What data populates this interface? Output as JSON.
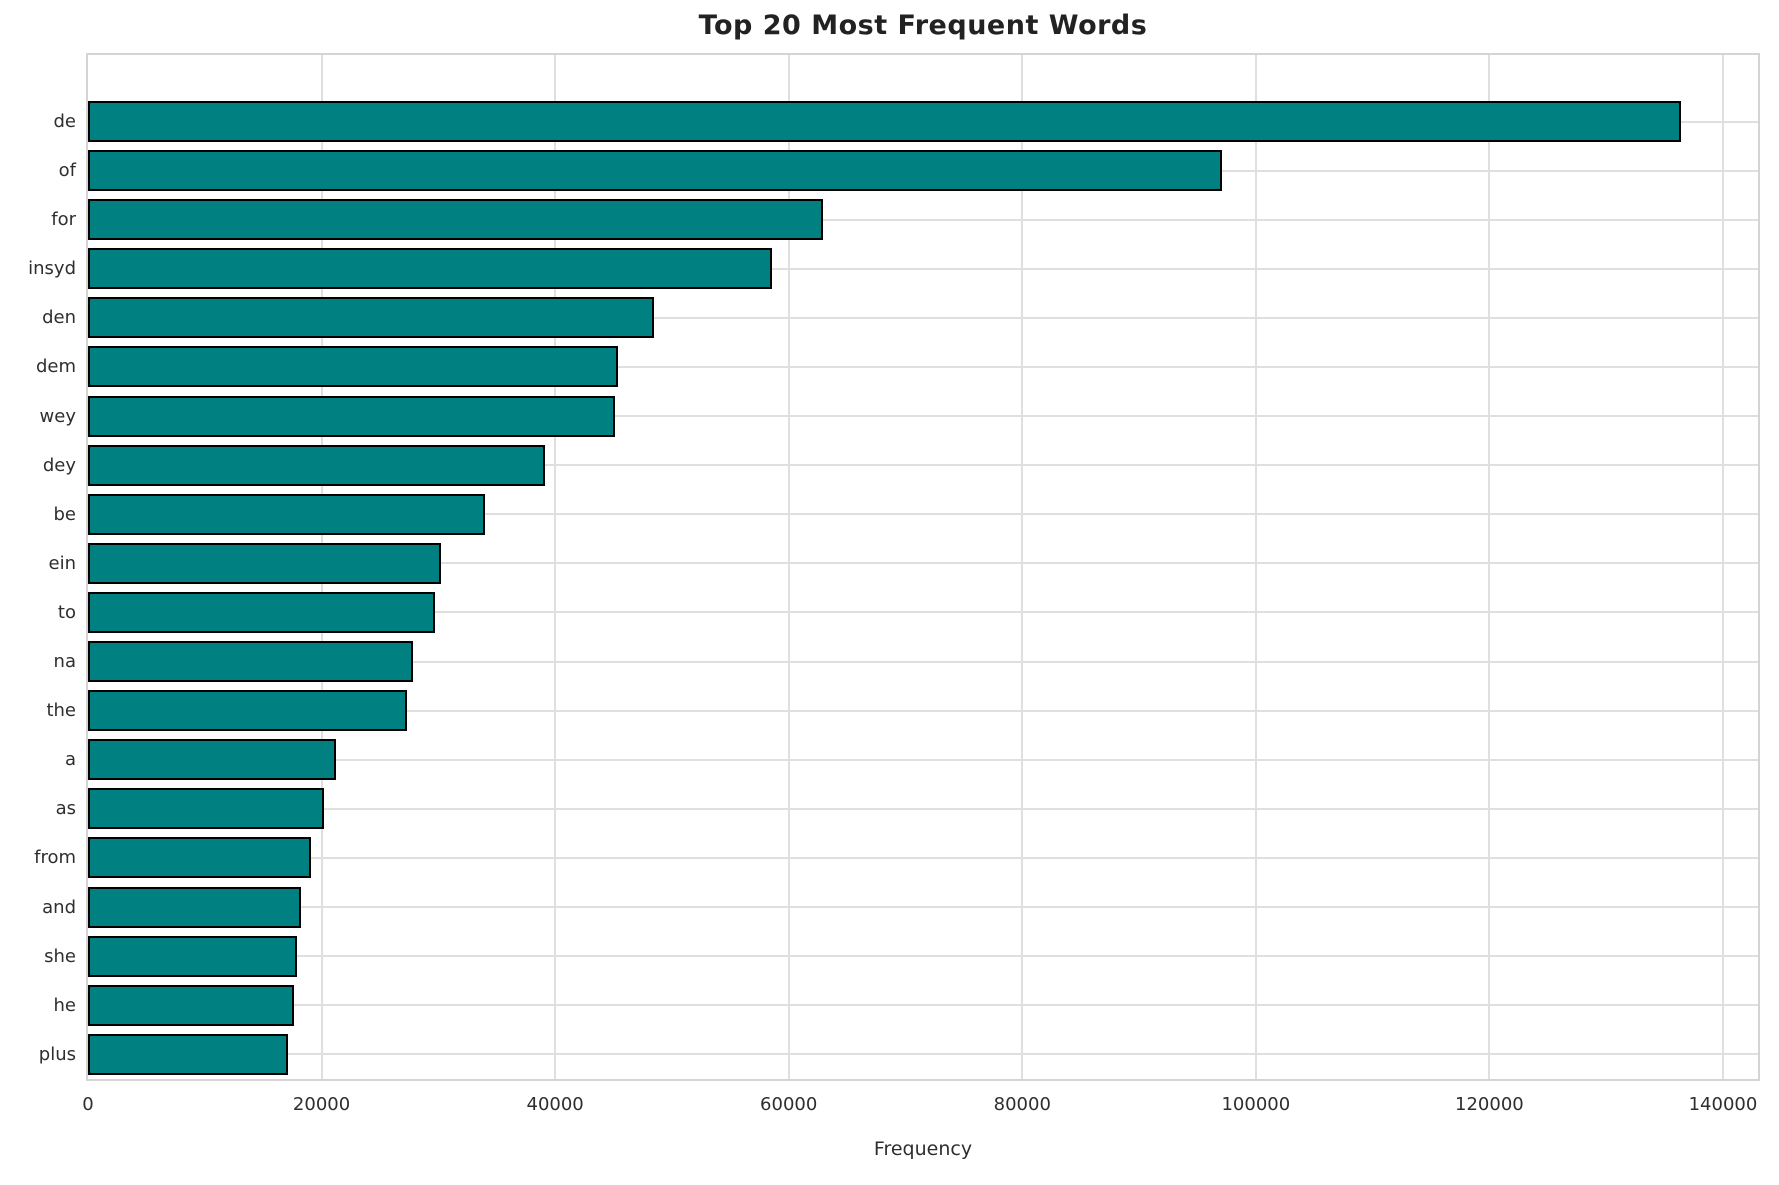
{
  "chart_data": {
    "type": "bar",
    "orientation": "horizontal",
    "title": "Top 20 Most Frequent Words",
    "xlabel": "Frequency",
    "ylabel": "",
    "categories": [
      "de",
      "of",
      "for",
      "insyd",
      "den",
      "dem",
      "wey",
      "dey",
      "be",
      "ein",
      "to",
      "na",
      "the",
      "a",
      "as",
      "from",
      "and",
      "she",
      "he",
      "plus"
    ],
    "values": [
      136400,
      97100,
      62900,
      58600,
      48500,
      45400,
      45100,
      39100,
      34000,
      30200,
      29700,
      27800,
      27300,
      21200,
      20200,
      19100,
      18200,
      17900,
      17600,
      17100
    ],
    "xlim": [
      0,
      143000
    ],
    "xticks": [
      0,
      20000,
      40000,
      60000,
      80000,
      100000,
      120000,
      140000
    ],
    "xtick_labels": [
      "0",
      "20000",
      "40000",
      "60000",
      "80000",
      "100000",
      "120000",
      "140000"
    ],
    "grid": "both",
    "legend": "none",
    "colors": {
      "bar_fill": "#008080",
      "bar_edge": "#000000",
      "grid_line": "#dfdfdf",
      "spine": "#d4d4d4",
      "tick_text": "#2e2e2e",
      "title_text": "#222222",
      "background": "#ffffff"
    }
  }
}
